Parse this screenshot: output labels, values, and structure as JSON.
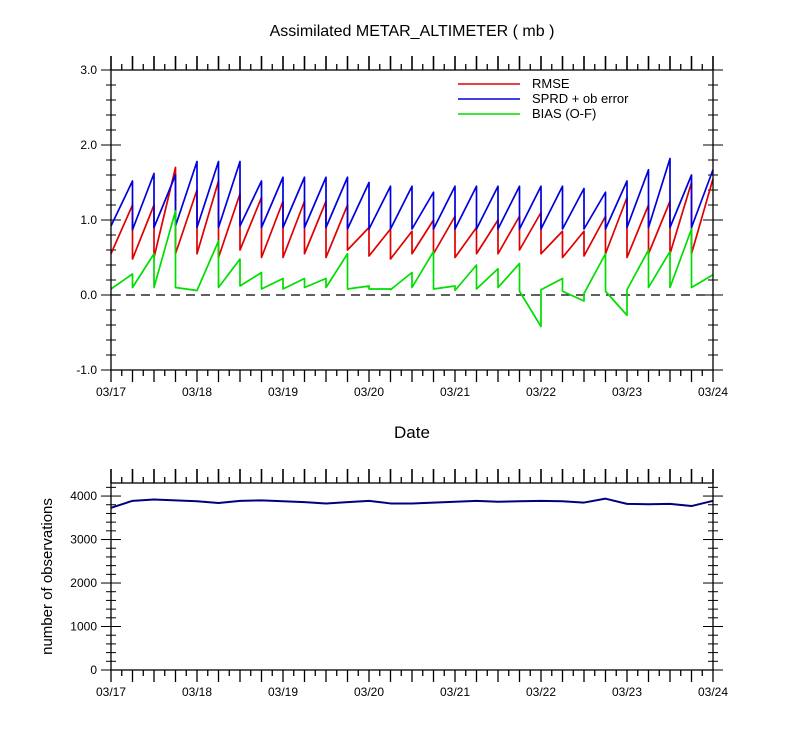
{
  "chart_data": [
    {
      "type": "line",
      "title": "Assimilated METAR_ALTIMETER ( mb )",
      "xlabel": "Date",
      "ylabel": "",
      "xlim": [
        0,
        7
      ],
      "ylim": [
        -1.0,
        3.0
      ],
      "x_tick_labels": [
        "03/17",
        "03/18",
        "03/19",
        "03/20",
        "03/21",
        "03/22",
        "03/23",
        "03/24"
      ],
      "y_tick_labels": [
        "-1.0",
        "0.0",
        "1.0",
        "2.0",
        "3.0"
      ],
      "y_ticks": [
        -1.0,
        0.0,
        1.0,
        2.0,
        3.0
      ],
      "legend_position": "top-right",
      "reference_line": {
        "y": 0.0,
        "style": "dashed"
      },
      "series": [
        {
          "name": "RMSE",
          "color": "#e00000",
          "points": [
            [
              0.0,
              0.55
            ],
            [
              0.25,
              1.2
            ],
            [
              0.25,
              0.48
            ],
            [
              0.5,
              1.2
            ],
            [
              0.5,
              0.5
            ],
            [
              0.75,
              1.7
            ],
            [
              0.75,
              0.55
            ],
            [
              1.0,
              1.4
            ],
            [
              1.0,
              0.55
            ],
            [
              1.25,
              1.52
            ],
            [
              1.25,
              0.5
            ],
            [
              1.5,
              1.35
            ],
            [
              1.5,
              0.6
            ],
            [
              1.75,
              1.3
            ],
            [
              1.75,
              0.5
            ],
            [
              2.0,
              1.25
            ],
            [
              2.0,
              0.5
            ],
            [
              2.25,
              1.25
            ],
            [
              2.25,
              0.55
            ],
            [
              2.5,
              1.25
            ],
            [
              2.5,
              0.5
            ],
            [
              2.75,
              1.2
            ],
            [
              2.75,
              0.6
            ],
            [
              3.0,
              0.9
            ],
            [
              3.0,
              0.52
            ],
            [
              3.25,
              0.88
            ],
            [
              3.25,
              0.48
            ],
            [
              3.5,
              0.85
            ],
            [
              3.5,
              0.55
            ],
            [
              3.75,
              1.0
            ],
            [
              3.75,
              0.55
            ],
            [
              4.0,
              1.05
            ],
            [
              4.0,
              0.5
            ],
            [
              4.25,
              0.9
            ],
            [
              4.25,
              0.55
            ],
            [
              4.5,
              1.0
            ],
            [
              4.5,
              0.55
            ],
            [
              4.75,
              1.05
            ],
            [
              4.75,
              0.6
            ],
            [
              5.0,
              1.1
            ],
            [
              5.0,
              0.55
            ],
            [
              5.25,
              0.85
            ],
            [
              5.25,
              0.5
            ],
            [
              5.5,
              0.85
            ],
            [
              5.5,
              0.52
            ],
            [
              5.75,
              1.05
            ],
            [
              5.75,
              0.55
            ],
            [
              6.0,
              1.3
            ],
            [
              6.0,
              0.5
            ],
            [
              6.25,
              1.2
            ],
            [
              6.25,
              0.55
            ],
            [
              6.5,
              1.25
            ],
            [
              6.5,
              0.55
            ],
            [
              6.75,
              1.5
            ],
            [
              6.75,
              0.55
            ],
            [
              7.0,
              1.55
            ]
          ]
        },
        {
          "name": "SPRD + ob error",
          "color": "#0000dd",
          "points": [
            [
              0.0,
              0.92
            ],
            [
              0.25,
              1.52
            ],
            [
              0.25,
              0.87
            ],
            [
              0.5,
              1.62
            ],
            [
              0.5,
              0.9
            ],
            [
              0.75,
              1.6
            ],
            [
              0.75,
              0.92
            ],
            [
              1.0,
              1.78
            ],
            [
              1.0,
              0.9
            ],
            [
              1.25,
              1.78
            ],
            [
              1.25,
              0.9
            ],
            [
              1.5,
              1.78
            ],
            [
              1.5,
              0.92
            ],
            [
              1.75,
              1.52
            ],
            [
              1.75,
              0.9
            ],
            [
              2.0,
              1.57
            ],
            [
              2.0,
              0.9
            ],
            [
              2.25,
              1.57
            ],
            [
              2.25,
              0.9
            ],
            [
              2.5,
              1.57
            ],
            [
              2.5,
              0.9
            ],
            [
              2.75,
              1.57
            ],
            [
              2.75,
              0.88
            ],
            [
              3.0,
              1.5
            ],
            [
              3.0,
              0.88
            ],
            [
              3.25,
              1.45
            ],
            [
              3.25,
              0.88
            ],
            [
              3.5,
              1.45
            ],
            [
              3.5,
              0.88
            ],
            [
              3.75,
              1.37
            ],
            [
              3.75,
              0.88
            ],
            [
              4.0,
              1.45
            ],
            [
              4.0,
              0.88
            ],
            [
              4.25,
              1.45
            ],
            [
              4.25,
              0.88
            ],
            [
              4.5,
              1.45
            ],
            [
              4.5,
              0.88
            ],
            [
              4.75,
              1.45
            ],
            [
              4.75,
              0.88
            ],
            [
              5.0,
              1.45
            ],
            [
              5.0,
              0.88
            ],
            [
              5.25,
              1.45
            ],
            [
              5.25,
              0.88
            ],
            [
              5.5,
              1.42
            ],
            [
              5.5,
              0.88
            ],
            [
              5.75,
              1.37
            ],
            [
              5.75,
              0.88
            ],
            [
              6.0,
              1.52
            ],
            [
              6.0,
              0.9
            ],
            [
              6.25,
              1.67
            ],
            [
              6.25,
              0.9
            ],
            [
              6.5,
              1.82
            ],
            [
              6.5,
              0.9
            ],
            [
              6.75,
              1.6
            ],
            [
              6.75,
              0.9
            ],
            [
              7.0,
              1.67
            ]
          ]
        },
        {
          "name": "BIAS (O-F)",
          "color": "#00dd00",
          "points": [
            [
              0.0,
              0.08
            ],
            [
              0.25,
              0.28
            ],
            [
              0.25,
              0.1
            ],
            [
              0.5,
              0.55
            ],
            [
              0.5,
              0.1
            ],
            [
              0.75,
              1.12
            ],
            [
              0.75,
              0.1
            ],
            [
              1.0,
              0.06
            ],
            [
              1.25,
              0.72
            ],
            [
              1.25,
              0.1
            ],
            [
              1.5,
              0.48
            ],
            [
              1.5,
              0.12
            ],
            [
              1.75,
              0.3
            ],
            [
              1.75,
              0.08
            ],
            [
              2.0,
              0.22
            ],
            [
              2.0,
              0.08
            ],
            [
              2.25,
              0.22
            ],
            [
              2.25,
              0.1
            ],
            [
              2.5,
              0.22
            ],
            [
              2.5,
              0.1
            ],
            [
              2.75,
              0.55
            ],
            [
              2.75,
              0.08
            ],
            [
              3.0,
              0.12
            ],
            [
              3.0,
              0.08
            ],
            [
              3.25,
              0.08
            ],
            [
              3.25,
              0.07
            ],
            [
              3.5,
              0.3
            ],
            [
              3.5,
              0.1
            ],
            [
              3.75,
              0.58
            ],
            [
              3.75,
              0.08
            ],
            [
              4.0,
              0.12
            ],
            [
              4.0,
              0.06
            ],
            [
              4.25,
              0.4
            ],
            [
              4.25,
              0.08
            ],
            [
              4.5,
              0.35
            ],
            [
              4.5,
              0.1
            ],
            [
              4.75,
              0.42
            ],
            [
              4.75,
              0.05
            ],
            [
              5.0,
              -0.42
            ],
            [
              5.0,
              0.07
            ],
            [
              5.25,
              0.22
            ],
            [
              5.25,
              0.05
            ],
            [
              5.5,
              -0.08
            ],
            [
              5.5,
              0.02
            ],
            [
              5.75,
              0.55
            ],
            [
              5.75,
              0.05
            ],
            [
              6.0,
              -0.27
            ],
            [
              6.0,
              0.07
            ],
            [
              6.25,
              0.6
            ],
            [
              6.25,
              0.1
            ],
            [
              6.5,
              0.58
            ],
            [
              6.5,
              0.1
            ],
            [
              6.75,
              0.88
            ],
            [
              6.75,
              0.1
            ],
            [
              7.0,
              0.27
            ]
          ]
        }
      ]
    },
    {
      "type": "line",
      "title": "",
      "xlabel": "",
      "ylabel": "number of observations",
      "xlim": [
        0,
        7
      ],
      "ylim": [
        0,
        4300
      ],
      "x_tick_labels": [
        "03/17",
        "03/18",
        "03/19",
        "03/20",
        "03/21",
        "03/22",
        "03/23",
        "03/24"
      ],
      "y_tick_labels": [
        "0",
        "1000",
        "2000",
        "3000",
        "4000"
      ],
      "y_ticks": [
        0,
        1000,
        2000,
        3000,
        4000
      ],
      "series": [
        {
          "color": "#000080",
          "points": [
            [
              0.0,
              3730
            ],
            [
              0.25,
              3890
            ],
            [
              0.5,
              3920
            ],
            [
              0.75,
              3900
            ],
            [
              1.0,
              3880
            ],
            [
              1.25,
              3840
            ],
            [
              1.5,
              3890
            ],
            [
              1.75,
              3900
            ],
            [
              2.0,
              3880
            ],
            [
              2.25,
              3860
            ],
            [
              2.5,
              3830
            ],
            [
              2.75,
              3860
            ],
            [
              3.0,
              3890
            ],
            [
              3.25,
              3830
            ],
            [
              3.5,
              3830
            ],
            [
              3.75,
              3850
            ],
            [
              4.0,
              3870
            ],
            [
              4.25,
              3890
            ],
            [
              4.5,
              3870
            ],
            [
              4.75,
              3880
            ],
            [
              5.0,
              3890
            ],
            [
              5.25,
              3880
            ],
            [
              5.5,
              3850
            ],
            [
              5.75,
              3940
            ],
            [
              6.0,
              3820
            ],
            [
              6.25,
              3810
            ],
            [
              6.5,
              3820
            ],
            [
              6.75,
              3770
            ],
            [
              7.0,
              3890
            ]
          ]
        }
      ]
    }
  ]
}
